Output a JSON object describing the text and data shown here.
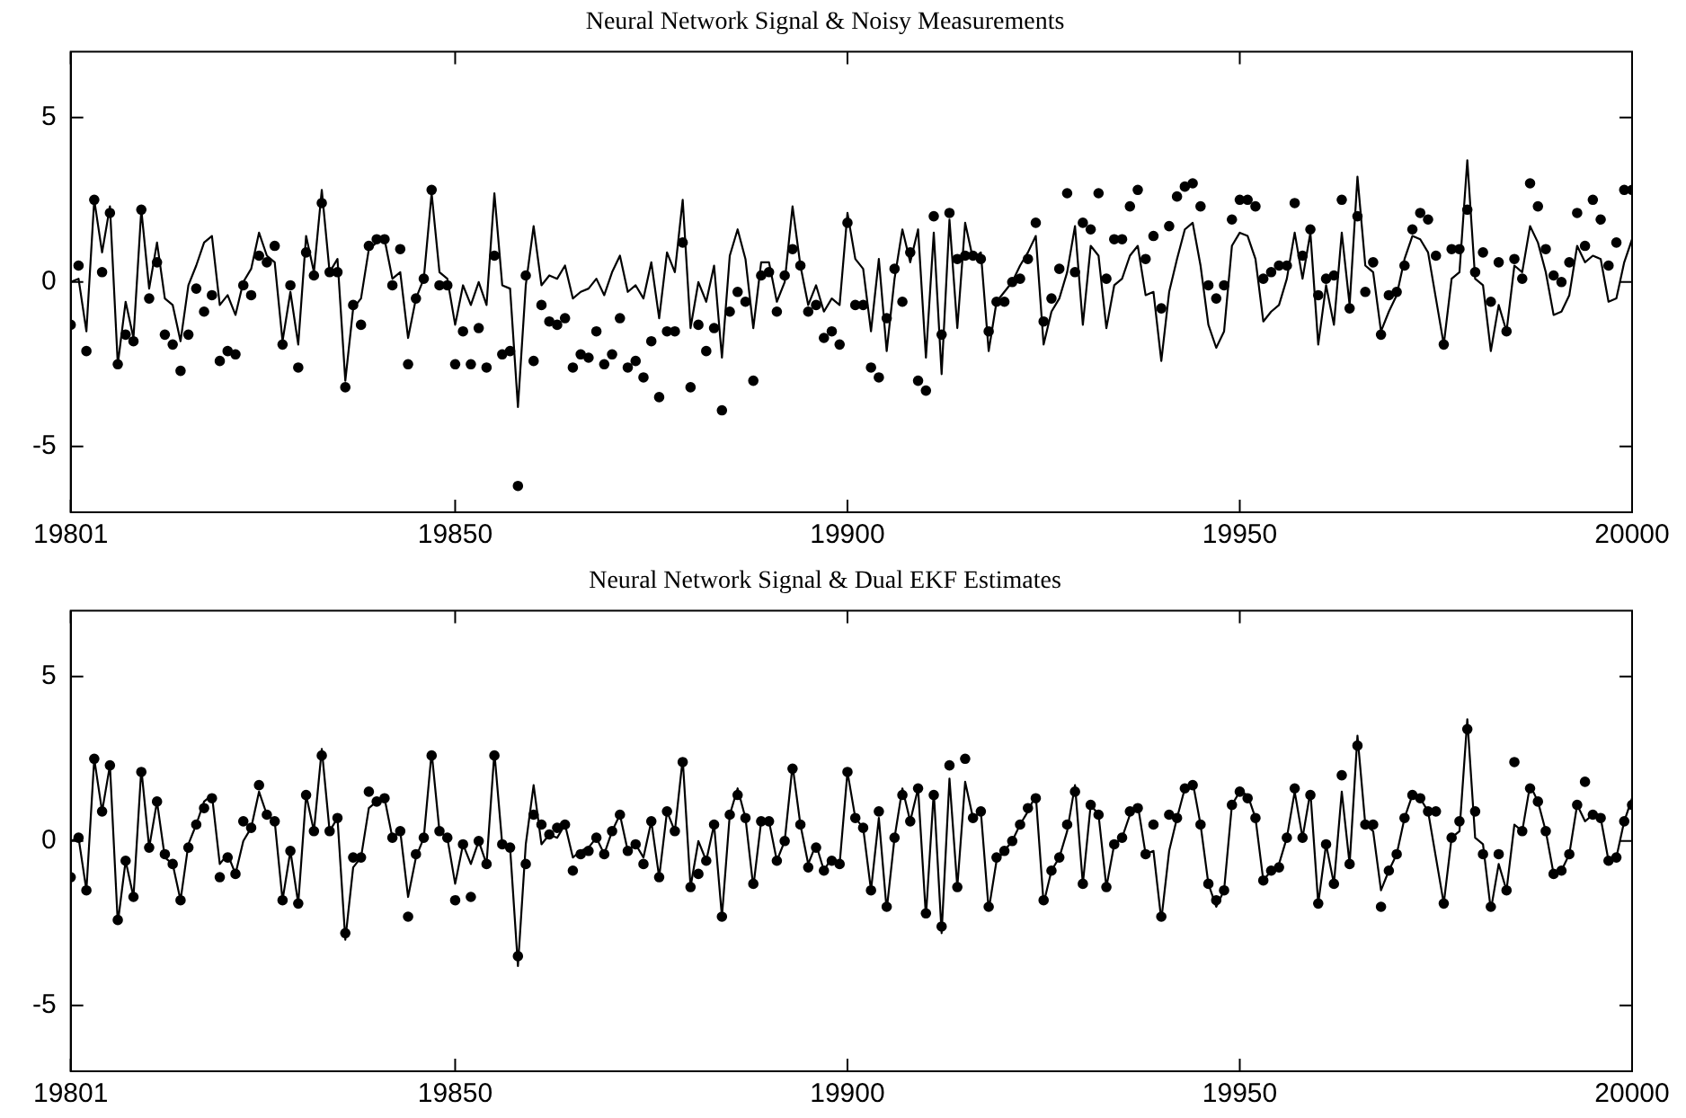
{
  "chart_data": [
    {
      "type": "line",
      "title": "Neural Network Signal & Noisy Measurements",
      "x": [
        19801,
        19802,
        19803,
        19804,
        19805,
        19806,
        19807,
        19808,
        19809,
        19810,
        19811,
        19812,
        19813,
        19814,
        19815,
        19816,
        19817,
        19818,
        19819,
        19820,
        19821,
        19822,
        19823,
        19824,
        19825,
        19826,
        19827,
        19828,
        19829,
        19830,
        19831,
        19832,
        19833,
        19834,
        19835,
        19836,
        19837,
        19838,
        19839,
        19840,
        19841,
        19842,
        19843,
        19844,
        19845,
        19846,
        19847,
        19848,
        19849,
        19850,
        19851,
        19852,
        19853,
        19854,
        19855,
        19856,
        19857,
        19858,
        19859,
        19860,
        19861,
        19862,
        19863,
        19864,
        19865,
        19866,
        19867,
        19868,
        19869,
        19870,
        19871,
        19872,
        19873,
        19874,
        19875,
        19876,
        19877,
        19878,
        19879,
        19880,
        19881,
        19882,
        19883,
        19884,
        19885,
        19886,
        19887,
        19888,
        19889,
        19890,
        19891,
        19892,
        19893,
        19894,
        19895,
        19896,
        19897,
        19898,
        19899,
        19900,
        19901,
        19902,
        19903,
        19904,
        19905,
        19906,
        19907,
        19908,
        19909,
        19910,
        19911,
        19912,
        19913,
        19914,
        19915,
        19916,
        19917,
        19918,
        19919,
        19920,
        19921,
        19922,
        19923,
        19924,
        19925,
        19926,
        19927,
        19928,
        19929,
        19930,
        19931,
        19932,
        19933,
        19934,
        19935,
        19936,
        19937,
        19938,
        19939,
        19940,
        19941,
        19942,
        19943,
        19944,
        19945,
        19946,
        19947,
        19948,
        19949,
        19950,
        19951,
        19952,
        19953,
        19954,
        19955,
        19956,
        19957,
        19958,
        19959,
        19960,
        19961,
        19962,
        19963,
        19964,
        19965,
        19966,
        19967,
        19968,
        19969,
        19970,
        19971,
        19972,
        19973,
        19974,
        19975,
        19976,
        19977,
        19978,
        19979,
        19980,
        19981,
        19982,
        19983,
        19984,
        19985,
        19986,
        19987,
        19988,
        19989,
        19990,
        19991,
        19992,
        19993,
        19994,
        19995,
        19996,
        19997,
        19998,
        19999,
        20000
      ],
      "xlim": [
        19801,
        20000
      ],
      "xticks": [
        19801,
        19850,
        19900,
        19950,
        20000
      ],
      "ylim": [
        -7,
        7
      ],
      "yticks": [
        -5,
        0,
        5
      ],
      "series": [
        {
          "type": "line",
          "color": "#000000",
          "values": [
            0,
            0.1,
            -1.5,
            2.5,
            0.9,
            2.3,
            -2.5,
            -0.6,
            -1.7,
            2.2,
            -0.2,
            1.2,
            -0.5,
            -0.7,
            -1.8,
            -0.1,
            0.5,
            1.2,
            1.4,
            -0.7,
            -0.4,
            -1,
            0,
            0.4,
            1.5,
            0.8,
            0.6,
            -1.8,
            -0.3,
            -1.9,
            1.4,
            0.3,
            2.8,
            0.3,
            0.7,
            -3,
            -0.8,
            -0.5,
            1,
            1.2,
            1.3,
            0.1,
            0.3,
            -1.7,
            -0.5,
            0.1,
            2.7,
            0.3,
            0.1,
            -1.3,
            -0.1,
            -0.7,
            0,
            -0.7,
            2.7,
            -0.1,
            -0.2,
            -3.8,
            -0.1,
            1.7,
            -0.1,
            0.2,
            0.1,
            0.5,
            -0.5,
            -0.3,
            -0.2,
            0.1,
            -0.4,
            0.3,
            0.8,
            -0.3,
            -0.1,
            -0.5,
            0.6,
            -1.1,
            0.9,
            0.3,
            2.5,
            -1.4,
            0,
            -0.6,
            0.5,
            -2.3,
            0.8,
            1.6,
            0.7,
            -1.4,
            0.6,
            0.6,
            -0.6,
            0,
            2.3,
            0.5,
            -0.7,
            -0.1,
            -0.9,
            -0.5,
            -0.7,
            2.1,
            0.7,
            0.4,
            -1.5,
            0.7,
            -2.1,
            0.1,
            1.6,
            0.6,
            1.6,
            -2.3,
            1.5,
            -2.8,
            1.9,
            -1.4,
            1.8,
            0.7,
            0.9,
            -2.1,
            -0.6,
            -0.3,
            0,
            0.5,
            0.9,
            1.4,
            -1.9,
            -0.9,
            -0.5,
            0.3,
            1.7,
            -1.3,
            1.1,
            0.8,
            -1.4,
            -0.1,
            0.1,
            0.8,
            1.1,
            -0.4,
            -0.3,
            -2.4,
            -0.3,
            0.7,
            1.6,
            1.8,
            0.5,
            -1.3,
            -2,
            -1.5,
            1.1,
            1.5,
            1.4,
            0.7,
            -1.2,
            -0.9,
            -0.7,
            0.1,
            1.5,
            0.1,
            1.5,
            -1.9,
            -0.1,
            -1.3,
            1.5,
            -0.7,
            3.2,
            0.5,
            0.3,
            -1.5,
            -0.9,
            -0.4,
            0.7,
            1.4,
            1.3,
            0.9,
            -0.5,
            -1.9,
            0.1,
            0.3,
            3.7,
            0.1,
            -0.1,
            -2.1,
            -0.7,
            -1.5,
            0.5,
            0.3,
            1.7,
            1.2,
            0.3,
            -1,
            -0.9,
            -0.4,
            1.1,
            0.6,
            0.8,
            0.7,
            -0.6,
            -0.5,
            0.6,
            1.3
          ]
        },
        {
          "type": "scatter",
          "color": "#000000",
          "marker": "circle",
          "values": [
            -1.3,
            0.5,
            -2.1,
            2.5,
            0.3,
            2.1,
            -2.5,
            -1.6,
            -1.8,
            2.2,
            -0.5,
            0.6,
            -1.6,
            -1.9,
            -2.7,
            -1.6,
            -0.2,
            -0.9,
            -0.4,
            -2.4,
            -2.1,
            -2.2,
            -0.1,
            -0.4,
            0.8,
            0.6,
            1.1,
            -1.9,
            -0.1,
            -2.6,
            0.9,
            0.2,
            2.4,
            0.3,
            0.3,
            -3.2,
            -0.7,
            -1.3,
            1.1,
            1.3,
            1.3,
            -0.1,
            1,
            -2.5,
            -0.5,
            0.1,
            2.8,
            -0.1,
            -0.1,
            -2.5,
            -1.5,
            -2.5,
            -1.4,
            -2.6,
            0.8,
            -2.2,
            -2.1,
            -6.2,
            0.2,
            -2.4,
            -0.7,
            -1.2,
            -1.3,
            -1.1,
            -2.6,
            -2.2,
            -2.3,
            -1.5,
            -2.5,
            -2.2,
            -1.1,
            -2.6,
            -2.4,
            -2.9,
            -1.8,
            -3.5,
            -1.5,
            -1.5,
            1.2,
            -3.2,
            -1.3,
            -2.1,
            -1.4,
            -3.9,
            -0.9,
            -0.3,
            -0.6,
            -3,
            0.2,
            0.3,
            -0.9,
            0.2,
            1,
            0.5,
            -0.9,
            -0.7,
            -1.7,
            -1.5,
            -1.9,
            1.8,
            -0.7,
            -0.7,
            -2.6,
            -2.9,
            -1.1,
            0.4,
            -0.6,
            0.9,
            -3,
            -3.3,
            2,
            -1.6,
            2.1,
            0.7,
            0.8,
            0.8,
            0.7,
            -1.5,
            -0.6,
            -0.6,
            0,
            0.1,
            0.7,
            1.8,
            -1.2,
            -0.5,
            0.4,
            2.7,
            0.3,
            1.8,
            1.6,
            2.7,
            0.1,
            1.3,
            1.3,
            2.3,
            2.8,
            0.7,
            1.4,
            -0.8,
            1.7,
            2.6,
            2.9,
            3,
            2.3,
            -0.1,
            -0.5,
            -0.1,
            1.9,
            2.5,
            2.5,
            2.3,
            0.1,
            0.3,
            0.5,
            0.5,
            2.4,
            0.8,
            1.6,
            -0.4,
            0.1,
            0.2,
            2.5,
            -0.8,
            2,
            -0.3,
            0.6,
            -1.6,
            -0.4,
            -0.3,
            0.5,
            1.6,
            2.1,
            1.9,
            0.8,
            -1.9,
            1,
            1,
            2.2,
            0.3,
            0.9,
            -0.6,
            0.6,
            -1.5,
            0.7,
            0.1,
            3,
            2.3,
            1,
            0.2,
            0,
            0.6,
            2.1,
            1.1,
            2.5,
            1.9,
            0.5,
            1.2,
            2.8,
            2.8
          ]
        }
      ]
    },
    {
      "type": "line",
      "title": "Neural Network Signal & Dual EKF Estimates",
      "x": [
        19801,
        19802,
        19803,
        19804,
        19805,
        19806,
        19807,
        19808,
        19809,
        19810,
        19811,
        19812,
        19813,
        19814,
        19815,
        19816,
        19817,
        19818,
        19819,
        19820,
        19821,
        19822,
        19823,
        19824,
        19825,
        19826,
        19827,
        19828,
        19829,
        19830,
        19831,
        19832,
        19833,
        19834,
        19835,
        19836,
        19837,
        19838,
        19839,
        19840,
        19841,
        19842,
        19843,
        19844,
        19845,
        19846,
        19847,
        19848,
        19849,
        19850,
        19851,
        19852,
        19853,
        19854,
        19855,
        19856,
        19857,
        19858,
        19859,
        19860,
        19861,
        19862,
        19863,
        19864,
        19865,
        19866,
        19867,
        19868,
        19869,
        19870,
        19871,
        19872,
        19873,
        19874,
        19875,
        19876,
        19877,
        19878,
        19879,
        19880,
        19881,
        19882,
        19883,
        19884,
        19885,
        19886,
        19887,
        19888,
        19889,
        19890,
        19891,
        19892,
        19893,
        19894,
        19895,
        19896,
        19897,
        19898,
        19899,
        19900,
        19901,
        19902,
        19903,
        19904,
        19905,
        19906,
        19907,
        19908,
        19909,
        19910,
        19911,
        19912,
        19913,
        19914,
        19915,
        19916,
        19917,
        19918,
        19919,
        19920,
        19921,
        19922,
        19923,
        19924,
        19925,
        19926,
        19927,
        19928,
        19929,
        19930,
        19931,
        19932,
        19933,
        19934,
        19935,
        19936,
        19937,
        19938,
        19939,
        19940,
        19941,
        19942,
        19943,
        19944,
        19945,
        19946,
        19947,
        19948,
        19949,
        19950,
        19951,
        19952,
        19953,
        19954,
        19955,
        19956,
        19957,
        19958,
        19959,
        19960,
        19961,
        19962,
        19963,
        19964,
        19965,
        19966,
        19967,
        19968,
        19969,
        19970,
        19971,
        19972,
        19973,
        19974,
        19975,
        19976,
        19977,
        19978,
        19979,
        19980,
        19981,
        19982,
        19983,
        19984,
        19985,
        19986,
        19987,
        19988,
        19989,
        19990,
        19991,
        19992,
        19993,
        19994,
        19995,
        19996,
        19997,
        19998,
        19999,
        20000
      ],
      "xlim": [
        19801,
        20000
      ],
      "xticks": [
        19801,
        19850,
        19900,
        19950,
        20000
      ],
      "ylim": [
        -7,
        7
      ],
      "yticks": [
        -5,
        0,
        5
      ],
      "series": [
        {
          "type": "line",
          "color": "#000000",
          "values": [
            0,
            0.1,
            -1.5,
            2.5,
            0.9,
            2.3,
            -2.5,
            -0.6,
            -1.7,
            2.2,
            -0.2,
            1.2,
            -0.5,
            -0.7,
            -1.8,
            -0.1,
            0.5,
            1.2,
            1.4,
            -0.7,
            -0.4,
            -1,
            0,
            0.4,
            1.5,
            0.8,
            0.6,
            -1.8,
            -0.3,
            -1.9,
            1.4,
            0.3,
            2.8,
            0.3,
            0.7,
            -3,
            -0.8,
            -0.5,
            1,
            1.2,
            1.3,
            0.1,
            0.3,
            -1.7,
            -0.5,
            0.1,
            2.7,
            0.3,
            0.1,
            -1.3,
            -0.1,
            -0.7,
            0,
            -0.7,
            2.7,
            -0.1,
            -0.2,
            -3.8,
            -0.1,
            1.7,
            -0.1,
            0.2,
            0.1,
            0.5,
            -0.5,
            -0.3,
            -0.2,
            0.1,
            -0.4,
            0.3,
            0.8,
            -0.3,
            -0.1,
            -0.5,
            0.6,
            -1.1,
            0.9,
            0.3,
            2.5,
            -1.4,
            0,
            -0.6,
            0.5,
            -2.3,
            0.8,
            1.6,
            0.7,
            -1.4,
            0.6,
            0.6,
            -0.6,
            0,
            2.3,
            0.5,
            -0.7,
            -0.1,
            -0.9,
            -0.5,
            -0.7,
            2.1,
            0.7,
            0.4,
            -1.5,
            0.7,
            -2.1,
            0.1,
            1.6,
            0.6,
            1.6,
            -2.3,
            1.5,
            -2.8,
            1.9,
            -1.4,
            1.8,
            0.7,
            0.9,
            -2.1,
            -0.6,
            -0.3,
            0,
            0.5,
            0.9,
            1.4,
            -1.9,
            -0.9,
            -0.5,
            0.3,
            1.7,
            -1.3,
            1.1,
            0.8,
            -1.4,
            -0.1,
            0.1,
            0.8,
            1.1,
            -0.4,
            -0.3,
            -2.4,
            -0.3,
            0.7,
            1.6,
            1.8,
            0.5,
            -1.3,
            -2,
            -1.5,
            1.1,
            1.5,
            1.4,
            0.7,
            -1.2,
            -0.9,
            -0.7,
            0.1,
            1.5,
            0.1,
            1.5,
            -1.9,
            -0.1,
            -1.3,
            1.5,
            -0.7,
            3.2,
            0.5,
            0.3,
            -1.5,
            -0.9,
            -0.4,
            0.7,
            1.4,
            1.3,
            0.9,
            -0.5,
            -1.9,
            0.1,
            0.3,
            3.7,
            0.1,
            -0.1,
            -2.1,
            -0.7,
            -1.5,
            0.5,
            0.3,
            1.7,
            1.2,
            0.3,
            -1,
            -0.9,
            -0.4,
            1.1,
            0.6,
            0.8,
            0.7,
            -0.6,
            -0.5,
            0.6,
            1.3
          ]
        },
        {
          "type": "scatter",
          "color": "#000000",
          "marker": "circle",
          "values": [
            -1.1,
            0.1,
            -1.5,
            2.5,
            0.9,
            2.3,
            -2.4,
            -0.6,
            -1.7,
            2.1,
            -0.2,
            1.2,
            -0.4,
            -0.7,
            -1.8,
            -0.2,
            0.5,
            1,
            1.3,
            -1.1,
            -0.5,
            -1,
            0.6,
            0.4,
            1.7,
            0.8,
            0.6,
            -1.8,
            -0.3,
            -1.9,
            1.4,
            0.3,
            2.6,
            0.3,
            0.7,
            -2.8,
            -0.5,
            -0.5,
            1.5,
            1.2,
            1.3,
            0.1,
            0.3,
            -2.3,
            -0.4,
            0.1,
            2.6,
            0.3,
            0.1,
            -1.8,
            -0.1,
            -1.7,
            0,
            -0.7,
            2.6,
            -0.1,
            -0.2,
            -3.5,
            -0.7,
            0.8,
            0.5,
            0.2,
            0.4,
            0.5,
            -0.9,
            -0.4,
            -0.3,
            0.1,
            -0.4,
            0.3,
            0.8,
            -0.3,
            -0.1,
            -0.7,
            0.6,
            -1.1,
            0.9,
            0.3,
            2.4,
            -1.4,
            -1,
            -0.6,
            0.5,
            -2.3,
            0.8,
            1.4,
            0.7,
            -1.3,
            0.6,
            0.6,
            -0.6,
            0,
            2.2,
            0.5,
            -0.8,
            -0.2,
            -0.9,
            -0.6,
            -0.7,
            2.1,
            0.7,
            0.4,
            -1.5,
            0.9,
            -2,
            0.1,
            1.4,
            0.6,
            1.6,
            -2.2,
            1.4,
            -2.6,
            2.3,
            -1.4,
            2.5,
            0.7,
            0.9,
            -2,
            -0.5,
            -0.3,
            0,
            0.5,
            1,
            1.3,
            -1.8,
            -0.9,
            -0.5,
            0.5,
            1.5,
            -1.3,
            1.1,
            0.8,
            -1.4,
            -0.1,
            0.1,
            0.9,
            1,
            -0.4,
            0.5,
            -2.3,
            0.8,
            0.7,
            1.6,
            1.7,
            0.5,
            -1.3,
            -1.8,
            -1.5,
            1.1,
            1.5,
            1.3,
            0.7,
            -1.2,
            -0.9,
            -0.8,
            0.1,
            1.6,
            0.1,
            1.4,
            -1.9,
            -0.1,
            -1.3,
            2,
            -0.7,
            2.9,
            0.5,
            0.5,
            -2,
            -0.9,
            -0.4,
            0.7,
            1.4,
            1.3,
            0.9,
            0.9,
            -1.9,
            0.1,
            0.6,
            3.4,
            0.9,
            -0.4,
            -2,
            -0.4,
            -1.5,
            2.4,
            0.3,
            1.6,
            1.2,
            0.3,
            -1,
            -0.9,
            -0.4,
            1.1,
            1.8,
            0.8,
            0.7,
            -0.6,
            -0.5,
            0.6,
            1.1
          ]
        }
      ]
    }
  ]
}
